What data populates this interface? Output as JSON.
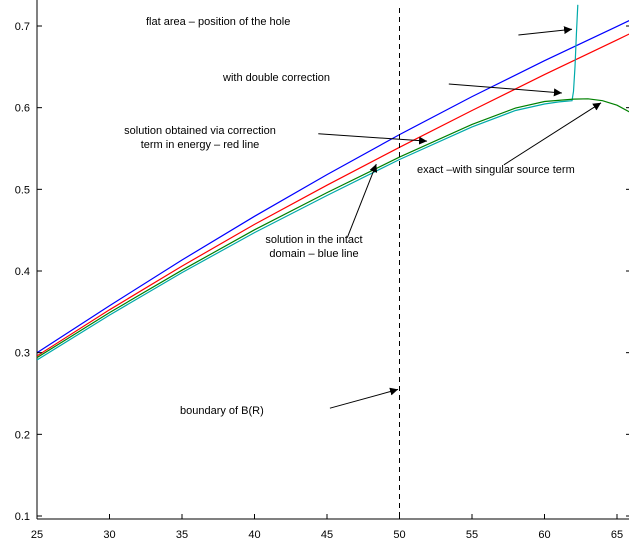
{
  "chart_data": {
    "type": "line",
    "title": "",
    "xlabel": "",
    "ylabel": "",
    "xlim": [
      25,
      66
    ],
    "ylim": [
      0.1,
      0.7
    ],
    "grid": false,
    "x_ticks": [
      25,
      30,
      35,
      40,
      45,
      50,
      55,
      60,
      65
    ],
    "y_ticks": [
      0.1,
      0.2,
      0.3,
      0.4,
      0.5,
      0.6,
      0.7
    ],
    "x_tick_labels": [
      "25",
      "30",
      "35",
      "40",
      "45",
      "50",
      "55",
      "60",
      "65"
    ],
    "y_tick_labels": [
      "0.1",
      "0.2",
      "0.3",
      "0.4",
      "0.5",
      "0.6",
      "0.7"
    ],
    "series": [
      {
        "color": "#0000ff",
        "x": [
          25,
          30,
          35,
          40,
          45,
          50,
          55,
          60,
          65,
          66
        ],
        "y": [
          0.3,
          0.3575,
          0.4135,
          0.467,
          0.518,
          0.567,
          0.6135,
          0.6575,
          0.6995,
          0.708
        ]
      },
      {
        "color": "#ff0000",
        "x": [
          25,
          30,
          35,
          40,
          45,
          50,
          55,
          60,
          65,
          66
        ],
        "y": [
          0.296,
          0.3525,
          0.406,
          0.457,
          0.505,
          0.5515,
          0.5965,
          0.6405,
          0.683,
          0.6915
        ]
      },
      {
        "color": "#00aaaa",
        "x": [
          25,
          30,
          35,
          40,
          45,
          50,
          55,
          58,
          60,
          61,
          61.9,
          62.0,
          62.1,
          62.2,
          62.3
        ],
        "y": [
          0.291,
          0.346,
          0.398,
          0.447,
          0.4925,
          0.5365,
          0.5765,
          0.5965,
          0.6045,
          0.607,
          0.6085,
          0.62,
          0.65,
          0.69,
          0.726
        ]
      },
      {
        "color": "#008000",
        "x": [
          25,
          30,
          35,
          40,
          45,
          50,
          55,
          58,
          60,
          62,
          63,
          64,
          65,
          66
        ],
        "y": [
          0.294,
          0.349,
          0.401,
          0.4505,
          0.496,
          0.5395,
          0.5795,
          0.5995,
          0.6075,
          0.6105,
          0.6108,
          0.6085,
          0.603,
          0.5935
        ]
      }
    ],
    "reference_line": {
      "x": 50,
      "style": "dashed",
      "color": "#000000"
    },
    "annotations": [
      {
        "text": "flat area – position of the hole",
        "arrow_from": [
          58.2,
          0.689
        ],
        "arrow_to": [
          61.9,
          0.696
        ]
      },
      {
        "text": "with double correction",
        "arrow_from": [
          53.4,
          0.629
        ],
        "arrow_to": [
          61.2,
          0.618
        ]
      },
      {
        "text": "solution obtained via correction\nterm in energy – red line",
        "arrow_from": [
          44.4,
          0.568
        ],
        "arrow_to": [
          51.9,
          0.559
        ]
      },
      {
        "text": "exact –with singular source term",
        "arrow_from": [
          57.2,
          0.53
        ],
        "arrow_to": [
          63.9,
          0.606
        ]
      },
      {
        "text": "solution in the intact\ndomain – blue line",
        "arrow_from": [
          46.4,
          0.441
        ],
        "arrow_to": [
          48.4,
          0.531
        ]
      },
      {
        "text": "boundary of B(R)",
        "arrow_from": [
          45.2,
          0.232
        ],
        "arrow_to": [
          49.9,
          0.255
        ]
      }
    ]
  }
}
